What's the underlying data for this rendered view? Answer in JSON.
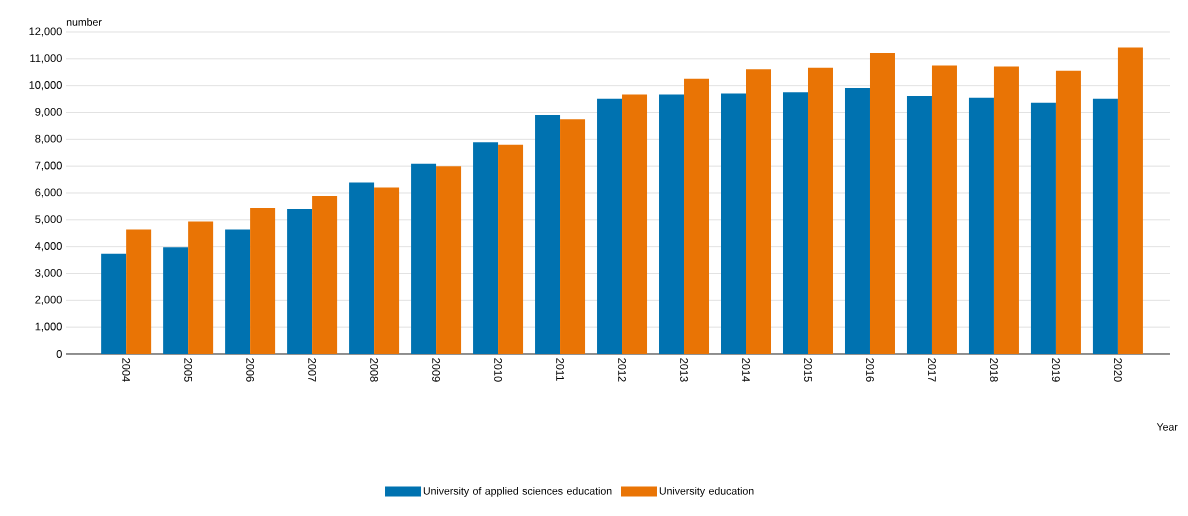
{
  "chart_data": {
    "type": "bar",
    "xlabel": "Year",
    "ylabel": "number",
    "categories": [
      "2004",
      "2005",
      "2006",
      "2007",
      "2008",
      "2009",
      "2010",
      "2011",
      "2012",
      "2013",
      "2014",
      "2015",
      "2016",
      "2017",
      "2018",
      "2019",
      "2020"
    ],
    "series": [
      {
        "name": "University of applied sciences education",
        "color": "#0072b0",
        "values": [
          3740,
          3980,
          4640,
          5400,
          6390,
          7090,
          7890,
          8910,
          9510,
          9670,
          9710,
          9750,
          9910,
          9610,
          9550,
          9360,
          9510
        ]
      },
      {
        "name": "University education",
        "color": "#e97405",
        "values": [
          4640,
          4940,
          5440,
          5890,
          6200,
          7000,
          7800,
          8750,
          9670,
          10260,
          10610,
          10670,
          11220,
          10750,
          10710,
          10560,
          11420
        ]
      }
    ],
    "ylim": [
      0,
      12000
    ],
    "yticks": [
      0,
      {
        "value": 1000,
        "label": "1,000"
      },
      {
        "value": 2000,
        "label": "2,000"
      },
      {
        "value": 3000,
        "label": "3,000"
      },
      {
        "value": 4000,
        "label": "4,000"
      },
      {
        "value": 5000,
        "label": "5,000"
      },
      {
        "value": 6000,
        "label": "6,000"
      },
      {
        "value": 7000,
        "label": "7,000"
      },
      {
        "value": 8000,
        "label": "8,000"
      },
      {
        "value": 9000,
        "label": "9,000"
      },
      {
        "value": 10000,
        "label": "10,000"
      },
      {
        "value": 11000,
        "label": "11,000"
      },
      {
        "value": 12000,
        "label": "12,000"
      }
    ],
    "grid": "y",
    "legend": "bottom"
  }
}
